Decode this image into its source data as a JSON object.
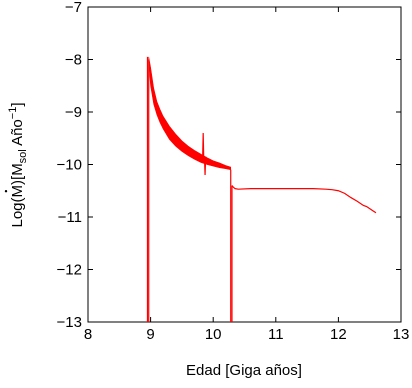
{
  "chart_data": {
    "type": "line",
    "title": "",
    "xlabel": "Edad [Giga años]",
    "ylabel": {
      "prefix": "Log(",
      "mdot": "M",
      "mid": ")[M",
      "sub": "sol",
      "after": " Año",
      "sup": "−1",
      "close": "]"
    },
    "xlim": [
      8,
      13
    ],
    "ylim": [
      -13,
      -7
    ],
    "xticks": [
      8,
      9,
      10,
      11,
      12,
      13
    ],
    "yticks": [
      -13,
      -12,
      -11,
      -10,
      -9,
      -8,
      -7
    ],
    "xtick_labels": [
      "8",
      "9",
      "10",
      "11",
      "12",
      "13"
    ],
    "ytick_labels": [
      "−13",
      "−12",
      "−11",
      "−10",
      "−9",
      "−8",
      "−7"
    ],
    "grid": false,
    "box": true,
    "series": [
      {
        "color": "#ff0000",
        "segments": [
          {
            "vertical": [
              8.95,
              -13,
              -7.95
            ]
          },
          {
            "vertical": [
              8.97,
              -13,
              -8.0
            ]
          },
          {
            "band": [
              [
                8.97,
                -8.05,
                -7.95
              ],
              [
                9.0,
                -8.5,
                -8.15
              ],
              [
                9.05,
                -8.85,
                -8.55
              ],
              [
                9.1,
                -9.05,
                -8.8
              ],
              [
                9.15,
                -9.2,
                -8.95
              ],
              [
                9.2,
                -9.32,
                -9.08
              ],
              [
                9.3,
                -9.52,
                -9.27
              ],
              [
                9.4,
                -9.65,
                -9.42
              ],
              [
                9.5,
                -9.75,
                -9.55
              ],
              [
                9.6,
                -9.83,
                -9.65
              ],
              [
                9.7,
                -9.9,
                -9.73
              ],
              [
                9.8,
                -9.96,
                -9.8
              ],
              [
                9.9,
                -10.0,
                -9.87
              ],
              [
                10.0,
                -10.03,
                -9.93
              ],
              [
                10.1,
                -10.06,
                -9.97
              ],
              [
                10.2,
                -10.08,
                -10.02
              ],
              [
                10.28,
                -10.1,
                -10.05
              ]
            ]
          },
          {
            "line": [
              [
                9.83,
                -9.95
              ],
              [
                9.84,
                -9.4
              ],
              [
                9.85,
                -9.95
              ],
              [
                9.86,
                -9.85
              ],
              [
                9.87,
                -10.2
              ],
              [
                9.88,
                -9.85
              ]
            ]
          },
          {
            "vertical": [
              10.28,
              -10.1,
              -13
            ]
          },
          {
            "vertical": [
              10.3,
              -13,
              -10.4
            ]
          },
          {
            "line": [
              [
                10.3,
                -10.4
              ],
              [
                10.32,
                -10.43
              ],
              [
                10.35,
                -10.46
              ],
              [
                10.4,
                -10.47
              ],
              [
                10.6,
                -10.46
              ],
              [
                10.8,
                -10.46
              ],
              [
                11.0,
                -10.46
              ],
              [
                11.2,
                -10.46
              ],
              [
                11.4,
                -10.46
              ],
              [
                11.6,
                -10.46
              ],
              [
                11.8,
                -10.47
              ],
              [
                11.9,
                -10.48
              ],
              [
                12.0,
                -10.5
              ],
              [
                12.1,
                -10.55
              ],
              [
                12.2,
                -10.63
              ],
              [
                12.3,
                -10.7
              ],
              [
                12.4,
                -10.78
              ],
              [
                12.45,
                -10.8
              ],
              [
                12.5,
                -10.84
              ],
              [
                12.55,
                -10.88
              ],
              [
                12.6,
                -10.92
              ]
            ]
          }
        ]
      }
    ]
  }
}
